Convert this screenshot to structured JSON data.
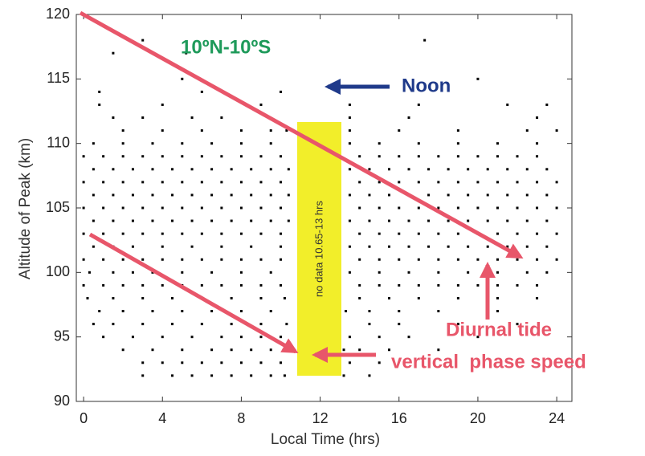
{
  "chart_data": {
    "type": "scatter",
    "title": "10ºN-10ºS",
    "x_label": "Local Time (hrs)",
    "y_label": "Altitude of Peak (km)",
    "annotations": [
      "Noon",
      "no data 10.65-13 hrs",
      "Diurnal tide",
      "vertical  phase speed"
    ],
    "color": "#000000",
    "xlim": [
      -0.37,
      24.77
    ],
    "xticks": [
      0,
      4,
      8,
      12,
      16,
      20,
      24
    ],
    "ylim": [
      90,
      120
    ],
    "yticks": [
      90,
      95,
      100,
      105,
      110,
      115,
      120
    ],
    "x": [
      3,
      4.5,
      5.5,
      6.5,
      7.5,
      8.5,
      9.5,
      10.2,
      13.2,
      14.5,
      3,
      4,
      5,
      6,
      7,
      8,
      9,
      10,
      13.5,
      15,
      2,
      3.5,
      5,
      6.5,
      7.5,
      8.5,
      9.5,
      10.4,
      13.2,
      14,
      15.5,
      18,
      1,
      2.5,
      4,
      5.5,
      7,
      8,
      9,
      10,
      13.5,
      15,
      16.5,
      20,
      0.5,
      1.5,
      3,
      4.5,
      6,
      7.5,
      9,
      10.3,
      13,
      14.5,
      16,
      19,
      22,
      0.8,
      2,
      3.5,
      5,
      6.5,
      8,
      9.5,
      13.3,
      14.5,
      16,
      18,
      21,
      0.2,
      1.5,
      3,
      4.5,
      6,
      7.5,
      9,
      10.2,
      13,
      14,
      15.5,
      17,
      19,
      21,
      23,
      0,
      1,
      2,
      3,
      4,
      5,
      6,
      7,
      8,
      9,
      10,
      13,
      14,
      15,
      16,
      17,
      18,
      19,
      20,
      21,
      22,
      23,
      0.3,
      1.5,
      2.5,
      3.5,
      5,
      6.5,
      8,
      9.5,
      13.5,
      15,
      16.5,
      18,
      19.5,
      21,
      22.5,
      23.5,
      0,
      1,
      2,
      3,
      4,
      5,
      6,
      7,
      8,
      9,
      10,
      13,
      14,
      15,
      16,
      17,
      18,
      19,
      20,
      21,
      22,
      23,
      24,
      0.5,
      1.5,
      2.5,
      4,
      5.5,
      7,
      8.5,
      10,
      13.5,
      14.5,
      15.5,
      16.5,
      17.5,
      18.5,
      19.5,
      20.5,
      21.5,
      22.5,
      23.5,
      0,
      1,
      2,
      3,
      4,
      5,
      6,
      7,
      8,
      9,
      10,
      13,
      14,
      15,
      16,
      17,
      18,
      19,
      20,
      21,
      22,
      23,
      24,
      0.5,
      1.5,
      2.5,
      3.5,
      4.5,
      5.5,
      6.5,
      7.5,
      8.5,
      9.5,
      10.4,
      13.5,
      14.5,
      15.5,
      16.5,
      17.5,
      18.5,
      19.5,
      20.5,
      21.5,
      22.5,
      23.5,
      0,
      1,
      2,
      3,
      4,
      5,
      6,
      7,
      8,
      9,
      10,
      13,
      14,
      15,
      16,
      17,
      18,
      19,
      20,
      21,
      22,
      23,
      24,
      0.5,
      1.5,
      2.5,
      3.5,
      4.5,
      5.5,
      6.5,
      7.5,
      8.5,
      9.5,
      10.4,
      13.5,
      14.5,
      15.5,
      16.5,
      17.5,
      18.5,
      19.5,
      20.5,
      21.5,
      22.5,
      23.5,
      0,
      1,
      2,
      3,
      4,
      5,
      6,
      7,
      8,
      9,
      10,
      13,
      14,
      15,
      16,
      17,
      18,
      19,
      20,
      21,
      22,
      23,
      24,
      0.5,
      1.5,
      2.5,
      3.5,
      4.5,
      5.5,
      6.5,
      7.5,
      8.5,
      9.5,
      10.4,
      13.5,
      14.5,
      15.5,
      16.5,
      17.5,
      18.5,
      19.5,
      20.5,
      21.5,
      22.5,
      23.5,
      0,
      1,
      2,
      3,
      4,
      5,
      6,
      7,
      8,
      9,
      10,
      13,
      14,
      15,
      16,
      17,
      18,
      19,
      20,
      21,
      22,
      23,
      0.5,
      2,
      3.5,
      5,
      6.5,
      8,
      9.5,
      13.5,
      15,
      17,
      19,
      21,
      23,
      2,
      4,
      6,
      8,
      9.5,
      10.3,
      13.5,
      16,
      19,
      22.5,
      24,
      1.5,
      3,
      5.5,
      7,
      13.5,
      16.5,
      23,
      0.8,
      4,
      9,
      13.5,
      17,
      21.5,
      23.5,
      0.8,
      6,
      10,
      5,
      20,
      1.5,
      5.2,
      3,
      17.3
    ],
    "values": [
      92,
      92,
      92,
      92,
      92,
      92,
      92,
      92,
      92,
      92,
      93,
      93,
      93,
      93,
      93,
      93,
      93,
      93,
      93,
      93,
      94,
      94,
      94,
      94,
      94,
      94,
      94,
      94,
      94,
      94,
      94,
      94,
      95,
      95,
      95,
      95,
      95,
      95,
      95,
      95,
      95,
      95,
      95,
      95,
      96,
      96,
      96,
      96,
      96,
      96,
      96,
      96,
      96,
      96,
      96,
      96,
      96,
      97,
      97,
      97,
      97,
      97,
      97,
      97,
      97,
      97,
      97,
      97,
      97,
      98,
      98,
      98,
      98,
      98,
      98,
      98,
      98,
      98,
      98,
      98,
      98,
      98,
      98,
      98,
      99,
      99,
      99,
      99,
      99,
      99,
      99,
      99,
      99,
      99,
      99,
      99,
      99,
      99,
      99,
      99,
      99,
      99,
      99,
      99,
      99,
      99,
      100,
      100,
      100,
      100,
      100,
      100,
      100,
      100,
      100,
      100,
      100,
      100,
      100,
      100,
      100,
      100,
      101,
      101,
      101,
      101,
      101,
      101,
      101,
      101,
      101,
      101,
      101,
      101,
      101,
      101,
      101,
      101,
      101,
      101,
      101,
      101,
      101,
      101,
      101,
      102,
      102,
      102,
      102,
      102,
      102,
      102,
      102,
      102,
      102,
      102,
      102,
      102,
      102,
      102,
      102,
      102,
      102,
      102,
      103,
      103,
      103,
      103,
      103,
      103,
      103,
      103,
      103,
      103,
      103,
      103,
      103,
      103,
      103,
      103,
      103,
      103,
      103,
      103,
      103,
      103,
      103,
      104,
      104,
      104,
      104,
      104,
      104,
      104,
      104,
      104,
      104,
      104,
      104,
      104,
      104,
      104,
      104,
      104,
      104,
      104,
      104,
      104,
      104,
      105,
      105,
      105,
      105,
      105,
      105,
      105,
      105,
      105,
      105,
      105,
      105,
      105,
      105,
      105,
      105,
      105,
      105,
      105,
      105,
      105,
      105,
      105,
      106,
      106,
      106,
      106,
      106,
      106,
      106,
      106,
      106,
      106,
      106,
      106,
      106,
      106,
      106,
      106,
      106,
      106,
      106,
      106,
      106,
      106,
      107,
      107,
      107,
      107,
      107,
      107,
      107,
      107,
      107,
      107,
      107,
      107,
      107,
      107,
      107,
      107,
      107,
      107,
      107,
      107,
      107,
      107,
      107,
      108,
      108,
      108,
      108,
      108,
      108,
      108,
      108,
      108,
      108,
      108,
      108,
      108,
      108,
      108,
      108,
      108,
      108,
      108,
      108,
      108,
      108,
      109,
      109,
      109,
      109,
      109,
      109,
      109,
      109,
      109,
      109,
      109,
      109,
      109,
      109,
      109,
      109,
      109,
      109,
      109,
      109,
      109,
      109,
      110,
      110,
      110,
      110,
      110,
      110,
      110,
      110,
      110,
      110,
      110,
      110,
      110,
      111,
      111,
      111,
      111,
      111,
      111,
      111,
      111,
      111,
      111,
      111,
      112,
      112,
      112,
      112,
      112,
      112,
      112,
      113,
      113,
      113,
      113,
      113,
      113,
      113,
      114,
      114,
      114,
      115,
      115,
      117,
      117,
      118,
      118
    ]
  }
}
